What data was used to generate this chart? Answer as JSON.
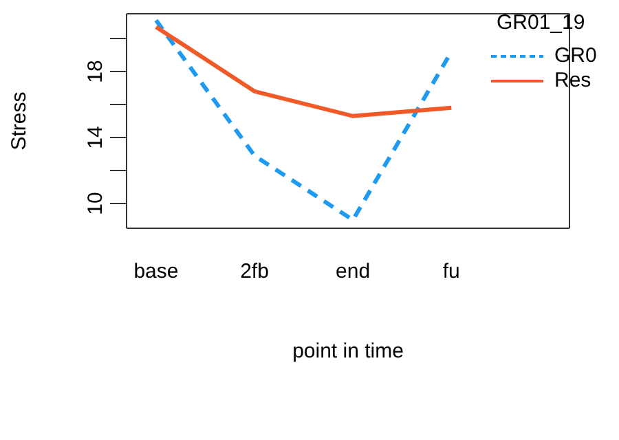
{
  "chart_data": {
    "type": "line",
    "xlabel": "point in time",
    "ylabel": "Stress",
    "legend_title": "GR01_19",
    "legend": "top right",
    "categories": [
      "base",
      "2fb",
      "end",
      "fu"
    ],
    "ylim": [
      8.5,
      21.5
    ],
    "yticks": [
      10,
      {
        "value": 12,
        "label": null
      },
      14,
      {
        "value": 16,
        "label": null
      },
      18,
      {
        "value": 20,
        "label": null
      }
    ],
    "series": [
      {
        "name": "GR0",
        "color": "#1e9bf0",
        "line_style": "dashed",
        "values": [
          21.1,
          12.9,
          9.0,
          19.2
        ]
      },
      {
        "name": "Res",
        "color": "#f05a28",
        "line_style": "solid",
        "values": [
          20.7,
          16.8,
          15.3,
          15.8
        ]
      }
    ]
  }
}
